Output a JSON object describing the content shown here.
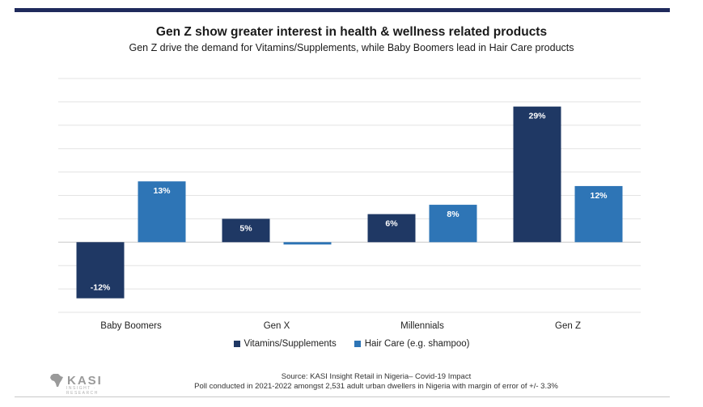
{
  "chart_data": {
    "type": "bar",
    "title": "Gen Z show greater interest in health & wellness related products",
    "subtitle": "Gen Z drive the demand for Vitamins/Supplements, while Baby Boomers lead in Hair Care products",
    "categories": [
      "Baby Boomers",
      "Gen X",
      "Millennials",
      "Gen Z"
    ],
    "series": [
      {
        "name": "Vitamins/Supplements",
        "color": "#1f3864",
        "values": [
          -12,
          5,
          6,
          29
        ],
        "labels": [
          "-12%",
          "5%",
          "6%",
          "29%"
        ]
      },
      {
        "name": "Hair Care (e.g. shampoo)",
        "color": "#2e75b6",
        "values": [
          13,
          -0.5,
          8,
          12
        ],
        "labels": [
          "13%",
          "",
          "8%",
          "12%"
        ]
      }
    ],
    "ylim": [
      -15,
      35
    ],
    "grid": true,
    "legend_position": "bottom"
  },
  "footer": {
    "source_line1": "Source: KASI Insight Retail in Nigeria– Covid-19 Impact",
    "source_line2": "Poll conducted in 2021-2022 amongst 2,531 adult urban dwellers in Nigeria with margin of error of +/- 3.3%",
    "logo_text": "KASI",
    "logo_subtext": "INSIGHT · RESEARCH"
  }
}
